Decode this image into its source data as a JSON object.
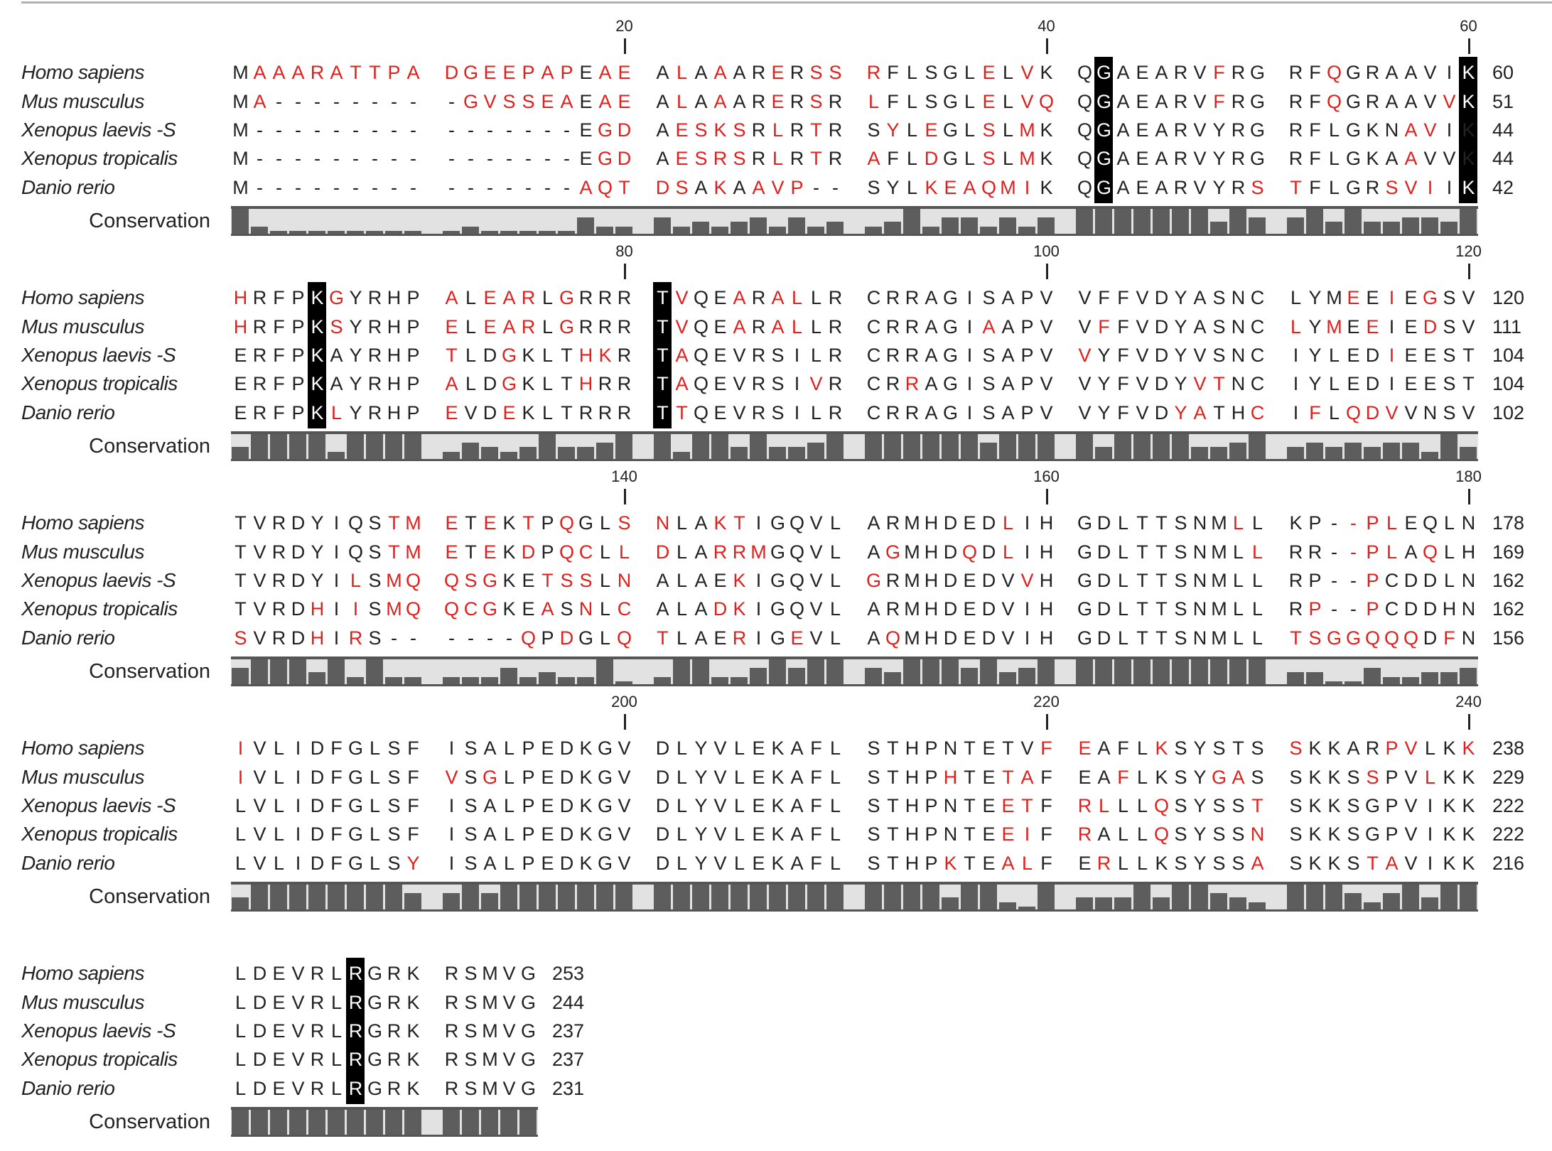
{
  "species": [
    "Homo sapiens",
    "Mus musculus",
    "Xenopus laevis -S",
    "Xenopus tropicalis",
    "Danio rerio"
  ],
  "conservation_label": "Conservation",
  "colors": {
    "divergent": "#e0201c",
    "highlight_bg": "#000000",
    "conservation_bar": "#5d5d5d",
    "conservation_bg": "#e2e2e2"
  },
  "mask_legend": {
    ".": "black residue",
    "r": "red (divergent) residue",
    "H": "highlighted residue (white on black)"
  },
  "blocks": [
    {
      "ruler": [
        "20",
        "40",
        "60"
      ],
      "rows": [
        {
          "seq": "MAAARATTPADGEEPAPEAEALAAARERSSRFLSGLELVKQGAEARVFRGRFQGRAAVIK",
          "mask": ".rrrrrrrrrrrrrrrr.rr.r.r..r.rrr.....r.r..H.....r....r......H",
          "end": "60"
        },
        {
          "seq": "MA---------GVSSEAEAEALAAARERSRLFLSGLELVQQGAEARVFRGRFQGRAAVVK",
          "mask": ".r.........rrrrrr.rr.r.r..r.r.r.....r.rr.H.....r....r.....rH",
          "end": "51"
        },
        {
          "seq": "M----------------EGDAESKSRLRTRSYLEGLSLMKQGAEARVYRGRFLGKNAVIK",
          "mask": "..................rr.rrrr.r.r..r.r..r.r..H..............rr...H",
          "end": "44"
        },
        {
          "seq": "M----------------EGDAESRSRLRTRAFLDGLSLMKQGAEARVYRGRFLGKAAVVK",
          "mask": "..................rr.rrrr.r.r.r..r..r.r..H..............r...rH",
          "end": "44"
        },
        {
          "seq": "M----------------AQTDSAKAAVP--SYLKEAQMIKQGAEARVYRSTFLGRSVIIK",
          "mask": ".................rrrrr.r.rrr.....rrrrrr..H.......rr....rrr.H",
          "end": "42"
        }
      ]
    },
    {
      "ruler": [
        "80",
        "100",
        "120"
      ],
      "rows": [
        {
          "seq": "HRFPKGYRHPALEARLGRRRTVQEARALLRCRRAGISAPVVFFVDYASNCLYMEEIEGSV",
          "mask": "r...Hr....r.rrr.r...Hr..r.rr.........................r.r.r..r..",
          "end": "120"
        },
        {
          "seq": "HRFPKSYRHPELEARLGRRRTVQEARALLRCRRAGIAAPVVFFVDYASNCLYMEEIEDSV",
          "mask": "r...Hr....r.rrr.r...Hr..r.rr........r....r........r.r.r..r..",
          "end": "111"
        },
        {
          "seq": "ERFPKAYRHPTLDGKLTHKRTAQEVRSILRCRRAGISAPVVYFVDYVSNCIYLEDIEEST",
          "mask": "....H.....r..r...rr.Hr..................r..............r",
          "end": "104"
        },
        {
          "seq": "ERFPKAYRHPALDGKLTHRRTAQEVRSIVRCRRAGISAPVVYFVDYVTNCIYLEDIEEST",
          "mask": "....H.....r..r...r..Hr......r...r.............rr............r",
          "end": "104"
        },
        {
          "seq": "ERFPKLYRHPEVDEKLTRRRTTQEVRSILRCRRAGISAPVVYFVDYATHCIFLQDVVNSV",
          "mask": "....Hr....r..r......Hr.......................rr..r.r.rrr..",
          "end": "102"
        }
      ]
    },
    {
      "ruler": [
        "140",
        "160",
        "180"
      ],
      "rows": [
        {
          "seq": "TVRDYIQSTMETEKTPQGLSNLAKTIGQVLARMHDEDLIHGDLTTSNMLLKP--PLEQLN",
          "mask": "........rrr.r.r.r..rr..rr............r..........r....rrr..",
          "end": "178"
        },
        {
          "seq": "TVRDYIQSTMETEKDPQCLLDLARRMGQVLAGMHDQDLIHGDLTTSNMLLRR--PLAQLH",
          "mask": "........rrr.r.r.rr.rr..rrr.....r...r.r...........r...rrr.r",
          "end": "169"
        },
        {
          "seq": "TVRDYILSMQQSGKETSSLNALAEKIGQVLGRMHDEDVVHGDLTTSNMLLRP--PCDDLN",
          "mask": "......r.rrrrr..rrr.r....r.....r.......r...............r....",
          "end": "162"
        },
        {
          "seq": "TVRDHIISMQQCGKEASNLCALADKIGQVLARMHDEDVIHGDLTTSNMLLRP--PCDDHN",
          "mask": "....r.r.rrrrr..r.r.r...rr..........................r..r.",
          "end": "162"
        },
        {
          "seq": "SVRDHIRS------QPDGLQTLAERIGEVLAQMHDEDVIHGDLTTSNMLLTSGGQQQDFN",
          "mask": "r...r.r.......r.r..rr...r..r...r..................rrrrrrr.r.",
          "end": "156"
        }
      ]
    },
    {
      "ruler": [
        "200",
        "220",
        "240"
      ],
      "rows": [
        {
          "seq": "IVLIDFGLSFISALPEDKGVDLYVLEKAFLSTHPNTETVFEAFLKSYSTSSKKARPVLKK",
          "mask": "r......................................rr...r.....r....rr..r..",
          "end": "238"
        },
        {
          "seq": "IVLIDFGLSFVSGLPEDKGVDLYVLEKAFLSTHPHTETAFEAFLKSYGASSKKSSPVLKK",
          "mask": "r.........r.r.....................r..rr...r....rr.....r..r..",
          "end": "229"
        },
        {
          "seq": "LVLIDFGLSFISALPEDKGVDLYVLEKAFLSTHPNTEETFRLLLQSYSSTSKKSGPVIKK",
          "mask": ".....................................rr.rr..r....r..........",
          "end": "222"
        },
        {
          "seq": "LVLIDFGLSFISALPEDKGVDLYVLEKAFLSTHPNTEEIFRALLQSYSSNSKKSGPVIKK",
          "mask": ".....................................rr.r...r....r..........",
          "end": "222"
        },
        {
          "seq": "LVLIDFGLSYISALPEDKGVDLYVLEKAFLSTHPKTEALFERLLKSYSSASKKSTAVIKK",
          "mask": ".........r........................r..rr..r.......r....rr....",
          "end": "216"
        }
      ]
    },
    {
      "ruler": [],
      "rows": [
        {
          "seq": "LDEVRLRGRKRSMVG",
          "mask": "......H........",
          "end": "253"
        },
        {
          "seq": "LDEVRLRGRKRSMVG",
          "mask": "......H........",
          "end": "244"
        },
        {
          "seq": "LDEVRLRGRKRSMVG",
          "mask": "......H........",
          "end": "237"
        },
        {
          "seq": "LDEVRLRGRKRSMVG",
          "mask": "......H........",
          "end": "237"
        },
        {
          "seq": "LDEVRLRGRKRSMVG",
          "mask": "......H........",
          "end": "231"
        }
      ]
    }
  ]
}
